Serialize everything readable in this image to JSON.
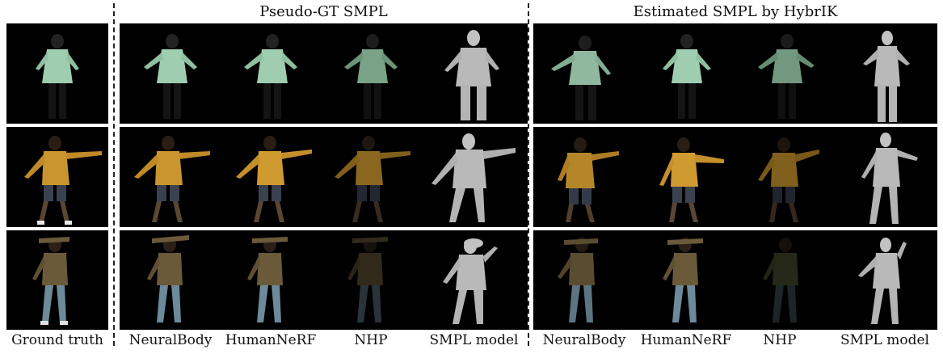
{
  "headers": {
    "pseudo_gt": "Pseudo-GT SMPL",
    "hybrik": "Estimated SMPL by HybrIK"
  },
  "captions": {
    "ground_truth": "Ground truth",
    "pseudo_gt": [
      "NeuralBody",
      "HumanNeRF",
      "NHP",
      "SMPL model"
    ],
    "hybrik": [
      "NeuralBody",
      "HumanNeRF",
      "NHP",
      "SMPL model"
    ]
  },
  "rows": [
    {
      "subject": "green-hoodie-person",
      "top_color": "#9fcdb0",
      "bottom_color": "#1a1a1a"
    },
    {
      "subject": "yellow-shirt-person",
      "top_color": "#c8952e",
      "bottom_color": "#3a4250"
    },
    {
      "subject": "brown-shirt-person",
      "top_color": "#6a5a3a",
      "bottom_color": "#6d8a9a"
    }
  ],
  "colors": {
    "panel_background": "#000000",
    "smpl_mesh": "#b9b9b9",
    "divider": "#222222"
  }
}
